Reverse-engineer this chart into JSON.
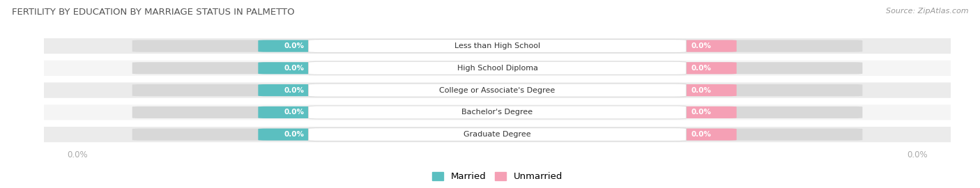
{
  "title": "FERTILITY BY EDUCATION BY MARRIAGE STATUS IN PALMETTO",
  "source": "Source: ZipAtlas.com",
  "categories": [
    "Less than High School",
    "High School Diploma",
    "College or Associate's Degree",
    "Bachelor's Degree",
    "Graduate Degree"
  ],
  "married_values": [
    0.0,
    0.0,
    0.0,
    0.0,
    0.0
  ],
  "unmarried_values": [
    0.0,
    0.0,
    0.0,
    0.0,
    0.0
  ],
  "married_color": "#5bbfc0",
  "unmarried_color": "#f5a0b5",
  "row_bg_even": "#ebebeb",
  "row_bg_odd": "#f5f5f5",
  "label_box_color": "#ffffff",
  "title_color": "#555555",
  "source_color": "#999999",
  "value_text_color": "#ffffff",
  "category_text_color": "#333333",
  "axis_label_color": "#aaaaaa",
  "figsize": [
    14.06,
    2.7
  ],
  "dpi": 100
}
